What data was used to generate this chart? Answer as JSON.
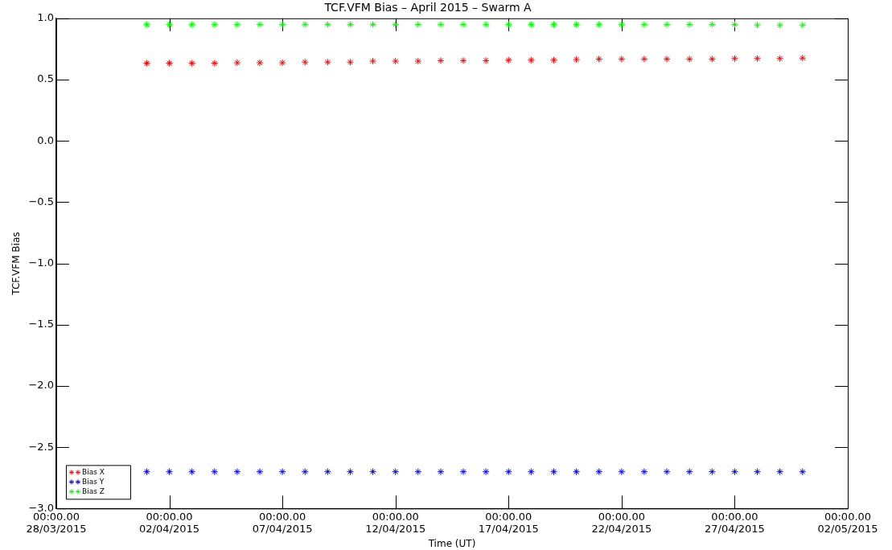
{
  "chart_data": {
    "type": "scatter",
    "title": "TCF.VFM Bias – April 2015 – Swarm A",
    "xlabel": "Time (UT)",
    "ylabel": "TCF.VFM Bias",
    "x": [
      "2015-04-01",
      "2015-04-02",
      "2015-04-03",
      "2015-04-04",
      "2015-04-05",
      "2015-04-06",
      "2015-04-07",
      "2015-04-08",
      "2015-04-09",
      "2015-04-10",
      "2015-04-11",
      "2015-04-12",
      "2015-04-13",
      "2015-04-14",
      "2015-04-15",
      "2015-04-16",
      "2015-04-17",
      "2015-04-18",
      "2015-04-19",
      "2015-04-20",
      "2015-04-21",
      "2015-04-22",
      "2015-04-23",
      "2015-04-24",
      "2015-04-25",
      "2015-04-26",
      "2015-04-27",
      "2015-04-28",
      "2015-04-29",
      "2015-04-30"
    ],
    "series": [
      {
        "name": "Bias X",
        "color": "#ff0000",
        "values": [
          0.634,
          0.634,
          0.634,
          0.634,
          0.638,
          0.638,
          0.638,
          0.643,
          0.643,
          0.643,
          0.651,
          0.651,
          0.651,
          0.655,
          0.655,
          0.655,
          0.659,
          0.659,
          0.659,
          0.664,
          0.668,
          0.668,
          0.668,
          0.668,
          0.668,
          0.668,
          0.672,
          0.672,
          0.672,
          0.676
        ]
      },
      {
        "name": "Bias Y",
        "color": "#0000ff",
        "values": [
          -2.7,
          -2.7,
          -2.7,
          -2.7,
          -2.7,
          -2.7,
          -2.7,
          -2.7,
          -2.7,
          -2.7,
          -2.7,
          -2.7,
          -2.7,
          -2.7,
          -2.7,
          -2.7,
          -2.7,
          -2.7,
          -2.7,
          -2.7,
          -2.7,
          -2.7,
          -2.7,
          -2.7,
          -2.7,
          -2.7,
          -2.7,
          -2.7,
          -2.7,
          -2.7
        ]
      },
      {
        "name": "Bias Z",
        "color": "#00ff00",
        "values": [
          0.95,
          0.95,
          0.95,
          0.95,
          0.95,
          0.95,
          0.95,
          0.95,
          0.95,
          0.95,
          0.95,
          0.95,
          0.95,
          0.95,
          0.95,
          0.95,
          0.95,
          0.95,
          0.95,
          0.95,
          0.95,
          0.95,
          0.95,
          0.95,
          0.95,
          0.95,
          0.95,
          0.945,
          0.945,
          0.945
        ]
      }
    ],
    "xlim": [
      "2015-03-28",
      "2015-05-02"
    ],
    "xticks": [
      {
        "value": "2015-03-28",
        "label": "00:00.00\n28/03/2015"
      },
      {
        "value": "2015-04-02",
        "label": "00:00.00\n02/04/2015"
      },
      {
        "value": "2015-04-07",
        "label": "00:00.00\n07/04/2015"
      },
      {
        "value": "2015-04-12",
        "label": "00:00.00\n12/04/2015"
      },
      {
        "value": "2015-04-17",
        "label": "00:00.00\n17/04/2015"
      },
      {
        "value": "2015-04-22",
        "label": "00:00.00\n22/04/2015"
      },
      {
        "value": "2015-04-27",
        "label": "00:00.00\n27/04/2015"
      },
      {
        "value": "2015-05-02",
        "label": "00:00.00\n02/05/2015"
      }
    ],
    "ylim": [
      -3,
      1
    ],
    "yticks": [
      {
        "value": -3,
        "label": "−3.0"
      },
      {
        "value": -2.5,
        "label": "−2.5"
      },
      {
        "value": -2,
        "label": "−2.0"
      },
      {
        "value": -1.5,
        "label": "−1.5"
      },
      {
        "value": -1,
        "label": "−1.0"
      },
      {
        "value": -0.5,
        "label": "−0.5"
      },
      {
        "value": 0,
        "label": "0.0"
      },
      {
        "value": 0.5,
        "label": "0.5"
      },
      {
        "value": 1,
        "label": "1.0"
      }
    ],
    "grid": false,
    "legend": "bottom left",
    "marker": "cross"
  }
}
